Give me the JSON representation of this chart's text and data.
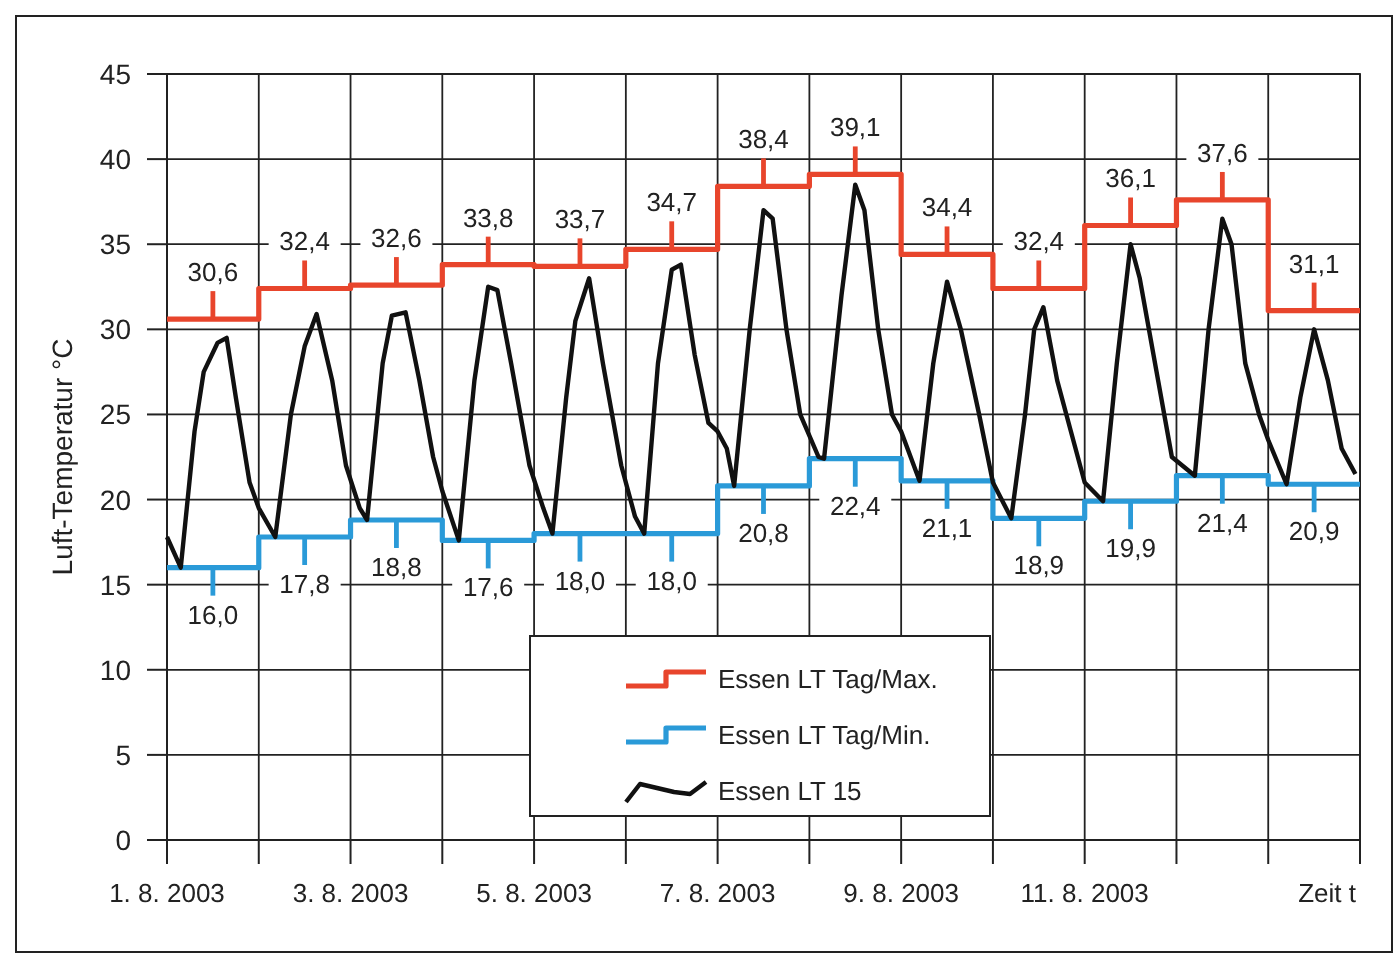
{
  "chart_data": {
    "type": "line",
    "xlabel": "Zeit t",
    "ylabel": "Luft-Temperatur °C",
    "xlim": [
      "2003-08-01",
      "2003-08-14"
    ],
    "xticks": [
      {
        "value": "2003-08-01",
        "label": "1. 8. 2003"
      },
      {
        "value": "2003-08-02",
        "label": null
      },
      {
        "value": "2003-08-03",
        "label": "3. 8. 2003"
      },
      {
        "value": "2003-08-04",
        "label": null
      },
      {
        "value": "2003-08-05",
        "label": "5. 8. 2003"
      },
      {
        "value": "2003-08-06",
        "label": null
      },
      {
        "value": "2003-08-07",
        "label": "7. 8. 2003"
      },
      {
        "value": "2003-08-08",
        "label": null
      },
      {
        "value": "2003-08-09",
        "label": "9. 8. 2003"
      },
      {
        "value": "2003-08-10",
        "label": null
      },
      {
        "value": "2003-08-11",
        "label": "11. 8. 2003"
      },
      {
        "value": "2003-08-12",
        "label": null
      },
      {
        "value": "2003-08-13",
        "label": null
      },
      {
        "value": "2003-08-14",
        "label": null
      }
    ],
    "ylim": [
      0,
      45
    ],
    "yticks": [
      0,
      5,
      10,
      15,
      20,
      25,
      30,
      35,
      40,
      45
    ],
    "grid": true,
    "legend": "bottom",
    "series": [
      {
        "name": "Essen LT Tag/Max.",
        "type": "step",
        "color": "#e8452c",
        "x": [
          "2003-08-01",
          "2003-08-02",
          "2003-08-03",
          "2003-08-04",
          "2003-08-05",
          "2003-08-06",
          "2003-08-07",
          "2003-08-08",
          "2003-08-09",
          "2003-08-10",
          "2003-08-11",
          "2003-08-12",
          "2003-08-13",
          "2003-08-14"
        ],
        "values": [
          30.6,
          32.4,
          32.6,
          33.8,
          33.7,
          34.7,
          38.4,
          39.1,
          34.4,
          32.4,
          36.1,
          37.6,
          31.1,
          31.1
        ],
        "value_labels": [
          "30,6",
          "32,4",
          "32,6",
          "33,8",
          "33,7",
          "34,7",
          "38,4",
          "39,1",
          "34,4",
          "32,4",
          "36,1",
          "37,6",
          "31,1",
          null
        ]
      },
      {
        "name": "Essen LT Tag/Min.",
        "type": "step",
        "color": "#2a9ad8",
        "x": [
          "2003-08-01",
          "2003-08-02",
          "2003-08-03",
          "2003-08-04",
          "2003-08-05",
          "2003-08-06",
          "2003-08-07",
          "2003-08-08",
          "2003-08-09",
          "2003-08-10",
          "2003-08-11",
          "2003-08-12",
          "2003-08-13",
          "2003-08-14"
        ],
        "values": [
          16.0,
          17.8,
          18.8,
          17.6,
          18.0,
          18.0,
          20.8,
          22.4,
          21.1,
          18.9,
          19.9,
          21.4,
          20.9,
          20.9
        ],
        "value_labels": [
          "16,0",
          "17,8",
          "18,8",
          "17,6",
          "18,0",
          "18,0",
          "20,8",
          "22,4",
          "21,1",
          "18,9",
          "19,9",
          "21,4",
          "20,9",
          null
        ]
      },
      {
        "name": "Essen LT 15",
        "type": "line",
        "color": "#111111",
        "x": [
          "2003-08-01T00:00",
          "2003-08-01T03:36",
          "2003-08-01T07:12",
          "2003-08-01T09:36",
          "2003-08-01T13:12",
          "2003-08-01T15:36",
          "2003-08-01T18:00",
          "2003-08-01T21:36",
          "2003-08-02T00:00",
          "2003-08-02T04:19",
          "2003-08-02T08:24",
          "2003-08-02T12:00",
          "2003-08-02T15:07",
          "2003-08-02T19:12",
          "2003-08-02T22:48",
          "2003-08-03T02:24",
          "2003-08-03T04:19",
          "2003-08-03T08:24",
          "2003-08-03T10:48",
          "2003-08-03T14:24",
          "2003-08-03T18:00",
          "2003-08-03T21:36",
          "2003-08-04T00:00",
          "2003-08-04T04:19",
          "2003-08-04T08:24",
          "2003-08-04T12:00",
          "2003-08-04T14:24",
          "2003-08-04T18:00",
          "2003-08-04T22:48",
          "2003-08-05T02:24",
          "2003-08-05T04:48",
          "2003-08-05T08:24",
          "2003-08-05T10:48",
          "2003-08-05T14:24",
          "2003-08-05T18:00",
          "2003-08-05T22:48",
          "2003-08-06T02:24",
          "2003-08-06T04:48",
          "2003-08-06T08:24",
          "2003-08-06T12:00",
          "2003-08-06T14:24",
          "2003-08-06T18:00",
          "2003-08-06T21:36",
          "2003-08-07T00:00",
          "2003-08-07T02:24",
          "2003-08-07T04:19",
          "2003-08-07T08:24",
          "2003-08-07T12:00",
          "2003-08-07T14:24",
          "2003-08-07T18:00",
          "2003-08-07T21:36",
          "2003-08-08T02:24",
          "2003-08-08T03:50",
          "2003-08-08T08:24",
          "2003-08-08T12:00",
          "2003-08-08T14:24",
          "2003-08-08T18:00",
          "2003-08-08T21:36",
          "2003-08-09T00:00",
          "2003-08-09T04:48",
          "2003-08-09T08:24",
          "2003-08-09T12:00",
          "2003-08-09T15:36",
          "2003-08-09T20:24",
          "2003-08-10T00:00",
          "2003-08-10T04:48",
          "2003-08-10T08:24",
          "2003-08-10T10:48",
          "2003-08-10T13:12",
          "2003-08-10T16:48",
          "2003-08-10T20:24",
          "2003-08-11T00:00",
          "2003-08-11T04:48",
          "2003-08-11T08:24",
          "2003-08-11T12:00",
          "2003-08-11T14:24",
          "2003-08-11T19:12",
          "2003-08-11T22:48",
          "2003-08-12T04:48",
          "2003-08-12T08:24",
          "2003-08-12T12:00",
          "2003-08-12T14:24",
          "2003-08-12T18:00",
          "2003-08-12T21:36",
          "2003-08-13T00:00",
          "2003-08-13T04:48",
          "2003-08-13T08:24",
          "2003-08-13T12:00",
          "2003-08-13T15:36",
          "2003-08-13T19:12",
          "2003-08-13T22:48"
        ],
        "values": [
          17.8,
          16.0,
          24,
          27.5,
          29.2,
          29.5,
          26,
          21,
          19.5,
          17.8,
          25,
          29,
          30.9,
          27,
          22,
          19.5,
          18.8,
          28,
          30.8,
          31,
          27,
          22.5,
          20.5,
          17.6,
          27,
          32.5,
          32.3,
          28,
          22,
          19.5,
          18.0,
          26,
          30.5,
          33,
          28,
          22,
          19,
          18.0,
          28,
          33.5,
          33.8,
          28.5,
          24.5,
          24,
          23,
          20.8,
          30,
          37,
          36.5,
          30,
          25,
          22.5,
          22.4,
          32,
          38.5,
          37,
          30,
          25,
          24,
          21.1,
          28,
          32.8,
          30,
          25,
          21,
          18.9,
          25,
          30,
          31.3,
          27,
          24,
          21,
          19.9,
          28,
          35,
          33,
          27,
          22.5,
          21.4,
          30,
          36.5,
          35,
          28,
          25,
          23.5,
          20.9,
          26,
          30,
          27,
          23,
          21.5
        ]
      }
    ]
  }
}
